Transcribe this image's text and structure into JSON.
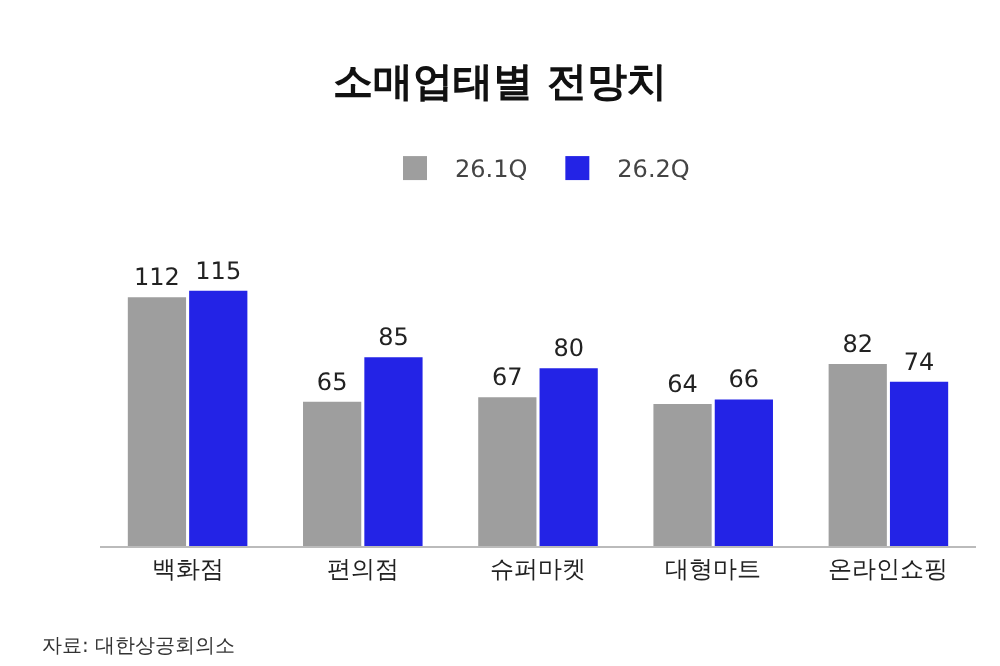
{
  "chart_data": {
    "type": "bar",
    "title": "소매업태별 전망치",
    "categories": [
      "백화점",
      "편의점",
      "슈퍼마켓",
      "대형마트",
      "온라인쇼핑"
    ],
    "series": [
      {
        "name": "26.1Q",
        "color": "#9e9e9e",
        "values": [
          112,
          65,
          67,
          64,
          82
        ]
      },
      {
        "name": "26.2Q",
        "color": "#2323e6",
        "values": [
          115,
          85,
          80,
          66,
          74
        ]
      }
    ],
    "data_labels": true,
    "legend": "top",
    "grid": false,
    "tick_labels": "x",
    "annotations": [
      "자료: 대한상공회의소"
    ]
  }
}
